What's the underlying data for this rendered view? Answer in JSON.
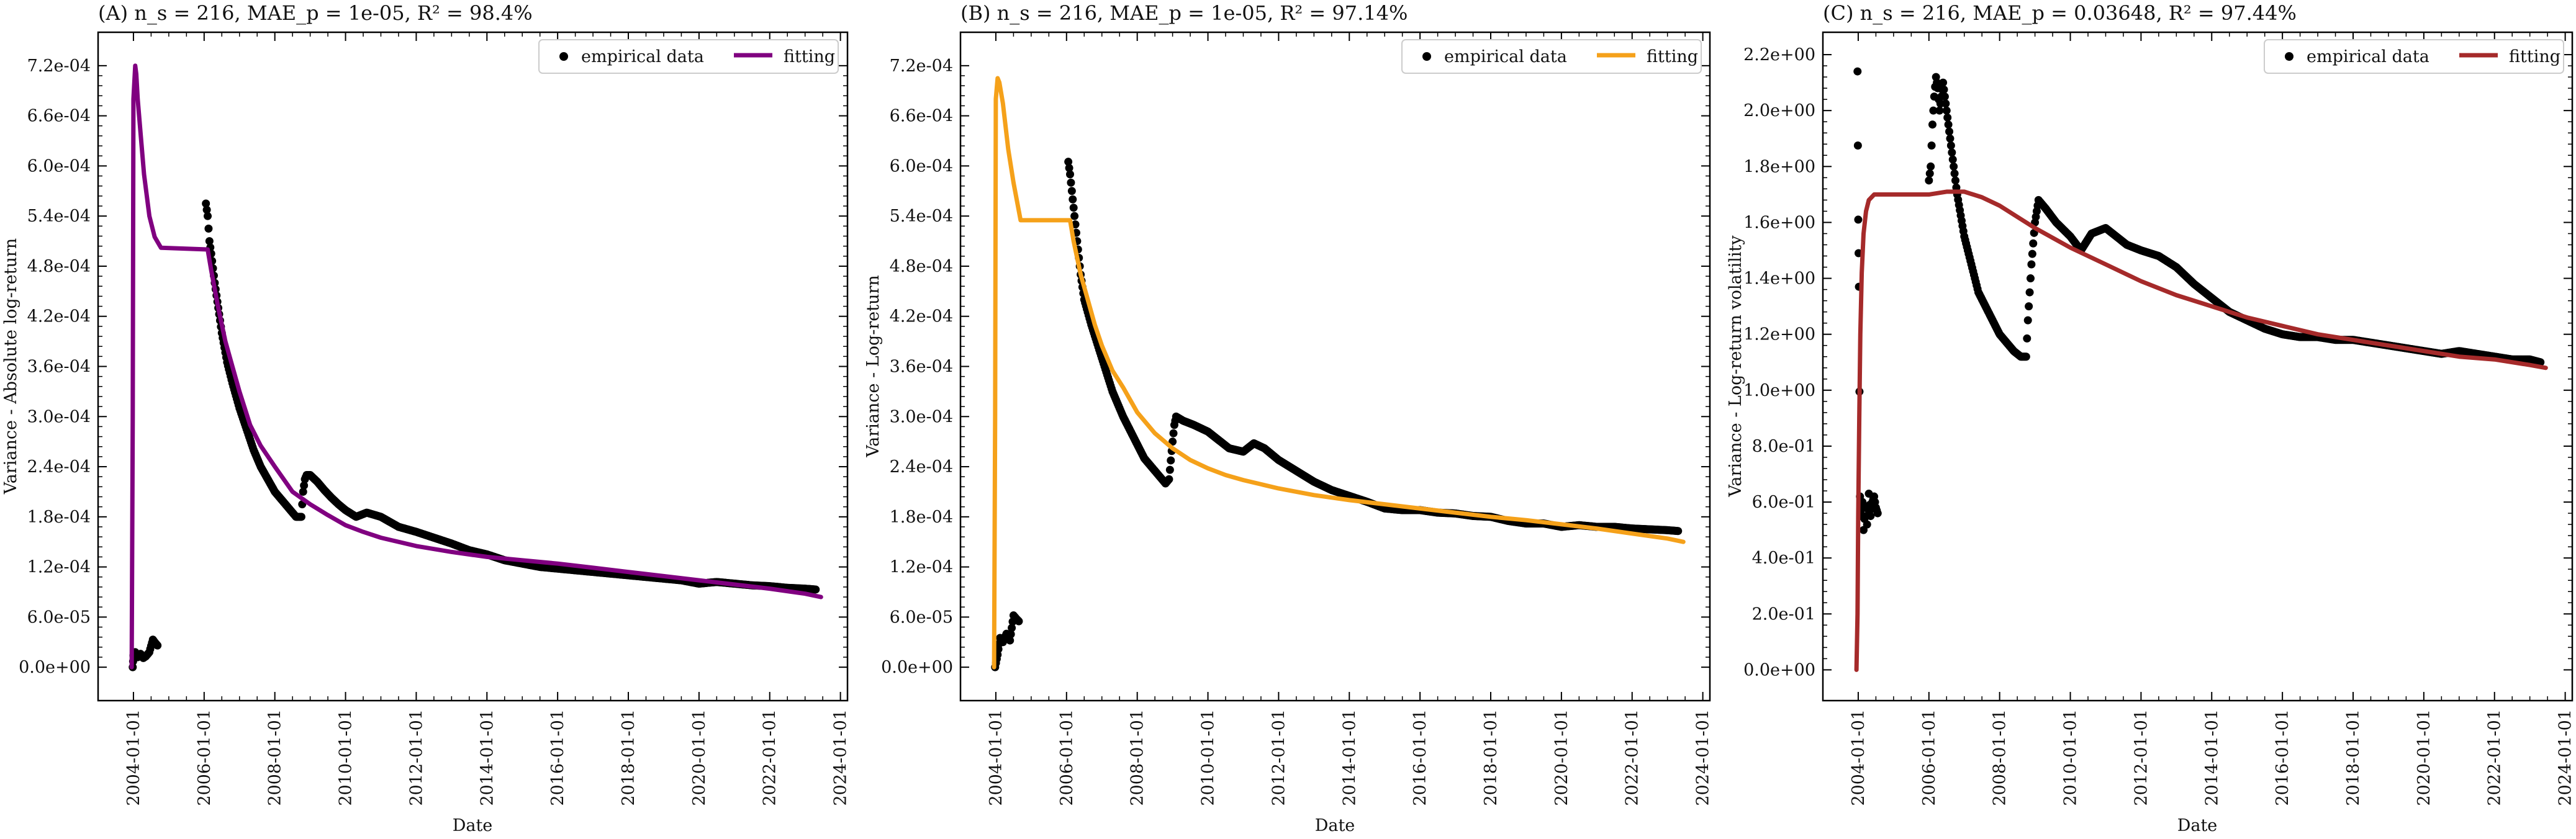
{
  "chart_data": [
    {
      "type": "line",
      "title": "(A) n_s = 216, MAE_p = 1e-05, R² = 98.4%",
      "xlabel": "Date",
      "ylabel": "Variance - Absolute log-return",
      "x_tick_labels": [
        "2004-01-01",
        "2006-01-01",
        "2008-01-01",
        "2010-01-01",
        "2012-01-01",
        "2014-01-01",
        "2016-01-01",
        "2018-01-01",
        "2020-01-01",
        "2022-01-01",
        "2024-01-01"
      ],
      "y_tick_values": [
        0,
        6e-05,
        0.00012,
        0.00018,
        0.00024,
        0.0003,
        0.00036,
        0.00042,
        0.00048,
        0.00054,
        0.0006,
        0.00066,
        0.00072
      ],
      "y_tick_labels": [
        "0.0e+00",
        "6.0e-05",
        "1.2e-04",
        "1.8e-04",
        "2.4e-04",
        "3.0e-04",
        "3.6e-04",
        "4.2e-04",
        "4.8e-04",
        "5.4e-04",
        "6.0e-04",
        "6.6e-04",
        "7.2e-04"
      ],
      "xlim": [
        2003.0,
        2024.2
      ],
      "ylim": [
        -4e-05,
        0.00076
      ],
      "legend": {
        "position": "top-right",
        "entries": [
          "empirical data",
          "fitting"
        ]
      },
      "colors": {
        "empirical": "#000000",
        "fitting": "#800080"
      },
      "series": [
        {
          "name": "empirical data",
          "kind": "scatter",
          "x": [
            2003.98,
            2004.0,
            2004.05,
            2004.12,
            2004.2,
            2004.28,
            2004.35,
            2004.45,
            2004.55,
            2004.6,
            2004.68,
            2006.05,
            2006.1,
            2006.15,
            2006.2,
            2006.3,
            2006.4,
            2006.5,
            2006.65,
            2006.8,
            2007.0,
            2007.2,
            2007.4,
            2007.6,
            2007.8,
            2008.0,
            2008.2,
            2008.4,
            2008.6,
            2008.75,
            2008.8,
            2008.85,
            2008.9,
            2009.0,
            2009.2,
            2009.4,
            2009.6,
            2009.8,
            2010.0,
            2010.3,
            2010.6,
            2011.0,
            2011.5,
            2012.0,
            2012.5,
            2013.0,
            2013.5,
            2014.0,
            2014.5,
            2015.0,
            2015.5,
            2016.0,
            2016.5,
            2017.0,
            2017.5,
            2018.0,
            2018.5,
            2019.0,
            2019.5,
            2020.0,
            2020.5,
            2021.0,
            2021.5,
            2022.0,
            2022.5,
            2023.0,
            2023.3
          ],
          "y": [
            0.0,
            1.4e-05,
            1.8e-05,
            1.2e-05,
            1.6e-05,
            1.1e-05,
            1.3e-05,
            1.8e-05,
            3.3e-05,
            3e-05,
            2.6e-05,
            0.000555,
            0.00054,
            0.00051,
            0.000495,
            0.00046,
            0.00043,
            0.0004,
            0.000365,
            0.00034,
            0.00031,
            0.000285,
            0.00026,
            0.00024,
            0.000225,
            0.00021,
            0.0002,
            0.00019,
            0.00018,
            0.00018,
            0.00021,
            0.000225,
            0.00023,
            0.00023,
            0.000222,
            0.000212,
            0.000203,
            0.000195,
            0.000188,
            0.00018,
            0.000185,
            0.00018,
            0.000168,
            0.000162,
            0.000155,
            0.000148,
            0.00014,
            0.000135,
            0.000128,
            0.000124,
            0.00012,
            0.000118,
            0.000116,
            0.000114,
            0.000112,
            0.00011,
            0.000108,
            0.000106,
            0.000104,
            0.0001,
            0.000102,
            0.0001,
            9.8e-05,
            9.7e-05,
            9.5e-05,
            9.4e-05,
            9.3e-05
          ]
        },
        {
          "name": "fitting",
          "kind": "line",
          "x": [
            2003.95,
            2003.98,
            2004.0,
            2004.05,
            2004.08,
            2004.12,
            2004.2,
            2004.3,
            2004.45,
            2004.6,
            2004.78,
            2005.5,
            2006.1,
            2006.2,
            2006.4,
            2006.6,
            2006.8,
            2007.0,
            2007.3,
            2007.6,
            2008.0,
            2008.5,
            2009.0,
            2009.5,
            2010.0,
            2010.5,
            2011.0,
            2012.0,
            2013.0,
            2014.0,
            2015.0,
            2016.0,
            2017.0,
            2018.0,
            2019.0,
            2020.0,
            2021.0,
            2022.0,
            2023.0,
            2023.45
          ],
          "y": [
            0.0,
            0.0003,
            0.00068,
            0.00072,
            0.00071,
            0.00068,
            0.00064,
            0.00059,
            0.00054,
            0.000515,
            0.000502,
            0.000501,
            0.0005,
            0.000475,
            0.00043,
            0.00039,
            0.00036,
            0.00033,
            0.00029,
            0.000265,
            0.00024,
            0.00021,
            0.000195,
            0.000182,
            0.00017,
            0.000162,
            0.000155,
            0.000145,
            0.000138,
            0.000132,
            0.000128,
            0.000124,
            0.000119,
            0.000114,
            0.000109,
            0.000104,
            9.9e-05,
            9.4e-05,
            8.8e-05,
            8.4e-05
          ]
        }
      ]
    },
    {
      "type": "line",
      "title": "(B) n_s = 216, MAE_p = 1e-05, R² = 97.14%",
      "xlabel": "Date",
      "ylabel": "Variance - Log-return",
      "x_tick_labels": [
        "2004-01-01",
        "2006-01-01",
        "2008-01-01",
        "2010-01-01",
        "2012-01-01",
        "2014-01-01",
        "2016-01-01",
        "2018-01-01",
        "2020-01-01",
        "2022-01-01",
        "2024-01-01"
      ],
      "y_tick_values": [
        0,
        6e-05,
        0.00012,
        0.00018,
        0.00024,
        0.0003,
        0.00036,
        0.00042,
        0.00048,
        0.00054,
        0.0006,
        0.00066,
        0.00072
      ],
      "y_tick_labels": [
        "0.0e+00",
        "6.0e-05",
        "1.2e-04",
        "1.8e-04",
        "2.4e-04",
        "3.0e-04",
        "3.6e-04",
        "4.2e-04",
        "4.8e-04",
        "5.4e-04",
        "6.0e-04",
        "6.6e-04",
        "7.2e-04"
      ],
      "xlim": [
        2003.0,
        2024.2
      ],
      "ylim": [
        -4e-05,
        0.00076
      ],
      "legend": {
        "position": "top-right",
        "entries": [
          "empirical data",
          "fitting"
        ]
      },
      "colors": {
        "empirical": "#000000",
        "fitting": "#f5a11a"
      },
      "series": [
        {
          "name": "empirical data",
          "kind": "scatter",
          "x": [
            2003.98,
            2004.05,
            2004.12,
            2004.2,
            2004.3,
            2004.4,
            2004.5,
            2004.58,
            2004.65,
            2006.05,
            2006.1,
            2006.15,
            2006.2,
            2006.3,
            2006.4,
            2006.5,
            2006.7,
            2007.0,
            2007.3,
            2007.6,
            2007.9,
            2008.2,
            2008.5,
            2008.8,
            2008.9,
            2009.0,
            2009.05,
            2009.1,
            2009.3,
            2009.6,
            2010.0,
            2010.3,
            2010.6,
            2011.0,
            2011.3,
            2011.6,
            2012.0,
            2012.5,
            2013.0,
            2013.5,
            2014.0,
            2014.5,
            2015.0,
            2015.5,
            2016.0,
            2016.5,
            2017.0,
            2017.5,
            2018.0,
            2018.5,
            2019.0,
            2019.5,
            2020.0,
            2020.5,
            2021.0,
            2021.5,
            2022.0,
            2022.5,
            2023.0,
            2023.3
          ],
          "y": [
            0.0,
            1.5e-05,
            3.5e-05,
            3e-05,
            4e-05,
            3.2e-05,
            6.2e-05,
            5.8e-05,
            5.5e-05,
            0.000605,
            0.00059,
            0.00057,
            0.00055,
            0.00051,
            0.00047,
            0.00044,
            0.00041,
            0.00037,
            0.00033,
            0.0003,
            0.000275,
            0.00025,
            0.000235,
            0.00022,
            0.000225,
            0.00027,
            0.00029,
            0.0003,
            0.000295,
            0.00029,
            0.000282,
            0.000272,
            0.000262,
            0.000258,
            0.000268,
            0.000262,
            0.000248,
            0.000235,
            0.000222,
            0.000212,
            0.000205,
            0.000198,
            0.00019,
            0.000188,
            0.000188,
            0.000185,
            0.000184,
            0.000181,
            0.00018,
            0.000175,
            0.000172,
            0.000172,
            0.000168,
            0.00017,
            0.000168,
            0.000168,
            0.000166,
            0.000165,
            0.000164,
            0.000163
          ]
        },
        {
          "name": "fitting",
          "kind": "line",
          "x": [
            2003.95,
            2003.98,
            2004.0,
            2004.05,
            2004.1,
            2004.2,
            2004.35,
            2004.5,
            2004.7,
            2005.5,
            2006.1,
            2006.2,
            2006.4,
            2006.6,
            2006.8,
            2007.0,
            2007.3,
            2007.6,
            2008.0,
            2008.5,
            2009.0,
            2009.5,
            2010.0,
            2010.5,
            2011.0,
            2012.0,
            2013.0,
            2014.0,
            2015.0,
            2016.0,
            2017.0,
            2018.0,
            2019.0,
            2020.0,
            2021.0,
            2022.0,
            2023.0,
            2023.45
          ],
          "y": [
            0.0,
            0.0003,
            0.00068,
            0.000705,
            0.0007,
            0.000675,
            0.00062,
            0.00058,
            0.000535,
            0.000535,
            0.000535,
            0.00051,
            0.00047,
            0.00044,
            0.00041,
            0.000385,
            0.000355,
            0.000335,
            0.000305,
            0.00028,
            0.000262,
            0.000248,
            0.000238,
            0.00023,
            0.000224,
            0.000214,
            0.000206,
            0.0002,
            0.000195,
            0.00019,
            0.000185,
            0.00018,
            0.000176,
            0.000171,
            0.000166,
            0.00016,
            0.000154,
            0.00015
          ]
        }
      ]
    },
    {
      "type": "line",
      "title": "(C) n_s = 216, MAE_p = 0.03648, R² = 97.44%",
      "xlabel": "Date",
      "ylabel": "Variance - Log-return volatility",
      "x_tick_labels": [
        "2004-01-01",
        "2006-01-01",
        "2008-01-01",
        "2010-01-01",
        "2012-01-01",
        "2014-01-01",
        "2016-01-01",
        "2018-01-01",
        "2020-01-01",
        "2022-01-01",
        "2024-01-01"
      ],
      "y_tick_values": [
        0,
        0.2,
        0.4,
        0.6,
        0.8,
        1.0,
        1.2,
        1.4,
        1.6,
        1.8,
        2.0,
        2.2
      ],
      "y_tick_labels": [
        "0.0e+00",
        "2.0e-01",
        "4.0e-01",
        "6.0e-01",
        "8.0e-01",
        "1.0e+00",
        "1.2e+00",
        "1.4e+00",
        "1.6e+00",
        "1.8e+00",
        "2.0e+00",
        "2.2e+00"
      ],
      "xlim": [
        2003.0,
        2024.2
      ],
      "ylim": [
        -0.11,
        2.28
      ],
      "legend": {
        "position": "top-right",
        "entries": [
          "empirical data",
          "fitting"
        ]
      },
      "colors": {
        "empirical": "#000000",
        "fitting": "#a52a2a"
      },
      "series": [
        {
          "name": "empirical data",
          "kind": "scatter",
          "x": [
            2003.98,
            2004.0,
            2004.02,
            2004.05,
            2004.08,
            2004.12,
            2004.15,
            2004.2,
            2004.25,
            2004.3,
            2004.35,
            2004.4,
            2004.45,
            2004.5,
            2004.55,
            2006.0,
            2006.05,
            2006.1,
            2006.15,
            2006.2,
            2006.25,
            2006.3,
            2006.4,
            2006.5,
            2006.6,
            2006.7,
            2006.8,
            2007.0,
            2007.2,
            2007.4,
            2007.6,
            2007.8,
            2008.0,
            2008.2,
            2008.4,
            2008.6,
            2008.75,
            2008.8,
            2008.85,
            2008.9,
            2009.0,
            2009.1,
            2009.3,
            2009.6,
            2010.0,
            2010.3,
            2010.6,
            2011.0,
            2011.3,
            2011.6,
            2012.0,
            2012.5,
            2013.0,
            2013.5,
            2014.0,
            2014.5,
            2015.0,
            2015.5,
            2016.0,
            2016.5,
            2017.0,
            2017.5,
            2018.0,
            2018.5,
            2019.0,
            2019.5,
            2020.0,
            2020.5,
            2021.0,
            2021.5,
            2022.0,
            2022.5,
            2023.0,
            2023.3
          ],
          "y": [
            2.14,
            1.61,
            1.37,
            0.62,
            0.55,
            0.6,
            0.5,
            0.58,
            0.52,
            0.63,
            0.55,
            0.6,
            0.62,
            0.58,
            0.56,
            1.75,
            1.8,
            1.95,
            2.05,
            2.12,
            2.08,
            2.0,
            2.1,
            2.0,
            1.9,
            1.8,
            1.7,
            1.55,
            1.45,
            1.35,
            1.3,
            1.25,
            1.2,
            1.17,
            1.14,
            1.12,
            1.12,
            1.25,
            1.35,
            1.45,
            1.6,
            1.68,
            1.65,
            1.6,
            1.55,
            1.5,
            1.56,
            1.58,
            1.55,
            1.52,
            1.5,
            1.48,
            1.44,
            1.38,
            1.33,
            1.28,
            1.25,
            1.22,
            1.2,
            1.19,
            1.19,
            1.18,
            1.18,
            1.17,
            1.16,
            1.15,
            1.14,
            1.13,
            1.14,
            1.13,
            1.12,
            1.11,
            1.11,
            1.1
          ]
        },
        {
          "name": "fitting",
          "kind": "line",
          "x": [
            2003.95,
            2003.98,
            2004.0,
            2004.03,
            2004.06,
            2004.1,
            2004.15,
            2004.22,
            2004.3,
            2004.45,
            2004.65,
            2005.0,
            2005.5,
            2006.0,
            2006.5,
            2007.0,
            2007.5,
            2008.0,
            2008.5,
            2009.0,
            2010.0,
            2011.0,
            2012.0,
            2013.0,
            2014.0,
            2015.0,
            2016.0,
            2017.0,
            2018.0,
            2019.0,
            2020.0,
            2021.0,
            2022.0,
            2023.0,
            2023.45
          ],
          "y": [
            0.0,
            0.2,
            0.55,
            0.9,
            1.2,
            1.42,
            1.56,
            1.64,
            1.68,
            1.7,
            1.7,
            1.7,
            1.7,
            1.7,
            1.71,
            1.71,
            1.69,
            1.66,
            1.62,
            1.58,
            1.51,
            1.45,
            1.39,
            1.34,
            1.3,
            1.26,
            1.23,
            1.2,
            1.18,
            1.16,
            1.14,
            1.12,
            1.11,
            1.09,
            1.08
          ]
        }
      ]
    }
  ]
}
